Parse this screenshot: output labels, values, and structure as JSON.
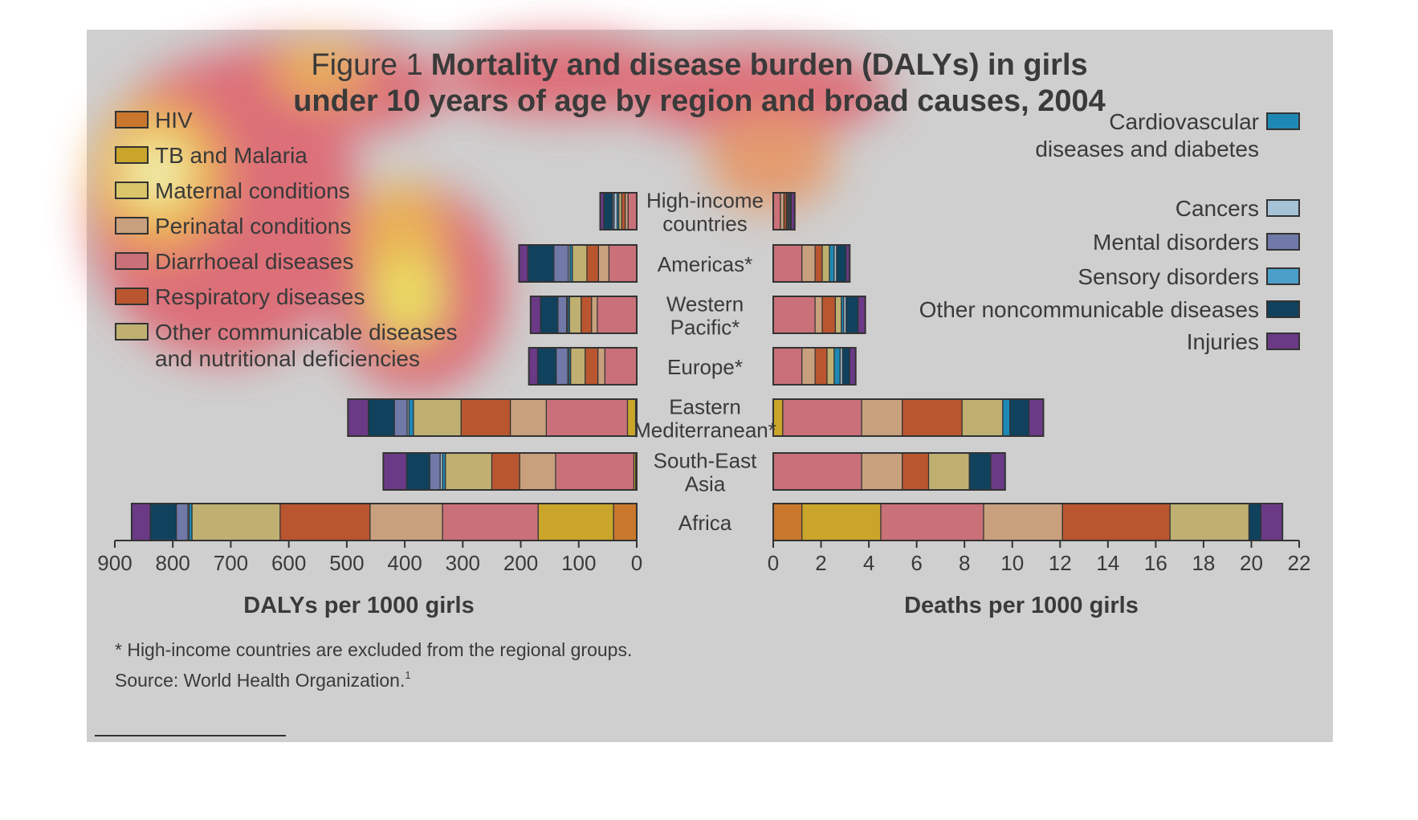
{
  "figure": {
    "title_prefix": "Figure 1",
    "title_line1": "Mortality and disease burden (DALYs) in girls",
    "title_line2": "under 10 years of age by region and broad causes, 2004",
    "footnote": "* High-income countries are excluded from the regional groups.",
    "source": "Source: World Health Organization.",
    "source_ref": "1"
  },
  "colors": {
    "panel_bg": "#cfcfcf",
    "text": "#3a3a3a",
    "bar_stroke": "#333333"
  },
  "legend_left": [
    {
      "key": "hiv",
      "label": "HIV",
      "color": "#c8772d"
    },
    {
      "key": "tb_malaria",
      "label": "TB and Malaria",
      "color": "#c9a52a"
    },
    {
      "key": "maternal",
      "label": "Maternal conditions",
      "color": "#dac56a"
    },
    {
      "key": "perinatal",
      "label": "Perinatal conditions",
      "color": "#c8a07d"
    },
    {
      "key": "diarrhoeal",
      "label": "Diarrhoeal diseases",
      "color": "#c97078"
    },
    {
      "key": "respiratory",
      "label": "Respiratory diseases",
      "color": "#b95630"
    },
    {
      "key": "other_comm",
      "label": "Other communicable diseases",
      "label2": "and nutritional deficiencies",
      "color": "#bfb072"
    }
  ],
  "legend_right": [
    {
      "key": "cardio",
      "label": "Cardiovascular",
      "label2": "diseases and diabetes",
      "color": "#1e88b4"
    },
    {
      "key": "cancers",
      "label": "Cancers",
      "color": "#a6c2d6"
    },
    {
      "key": "mental",
      "label": "Mental disorders",
      "color": "#7079a8"
    },
    {
      "key": "sensory",
      "label": "Sensory disorders",
      "color": "#4b9fc8"
    },
    {
      "key": "other_ncd",
      "label": "Other noncommunicable diseases",
      "color": "#10425e"
    },
    {
      "key": "injuries",
      "label": "Injuries",
      "color": "#6a3a86"
    }
  ],
  "chart_data": [
    {
      "type": "bar",
      "orientation": "horizontal",
      "stacked": true,
      "xlabel": "DALYs per 1000 girls",
      "xlim": [
        0,
        900
      ],
      "xticks": [
        900,
        800,
        700,
        600,
        500,
        400,
        300,
        200,
        100,
        0
      ],
      "direction": "right-to-left",
      "categories": [
        "High-income countries",
        "Americas*",
        "Western Pacific*",
        "Europe*",
        "Eastern Mediterranean*",
        "South-East Asia",
        "Africa"
      ],
      "series": [
        {
          "key": "hiv",
          "values": [
            0,
            0,
            0,
            0,
            2,
            2,
            40
          ]
        },
        {
          "key": "tb_malaria",
          "values": [
            0,
            0,
            0,
            0,
            14,
            3,
            130
          ]
        },
        {
          "key": "diarrhoeal",
          "values": [
            15,
            48,
            68,
            55,
            140,
            135,
            165
          ]
        },
        {
          "key": "perinatal",
          "values": [
            5,
            18,
            10,
            12,
            62,
            62,
            125
          ]
        },
        {
          "key": "respiratory",
          "values": [
            6,
            20,
            18,
            22,
            85,
            48,
            155
          ]
        },
        {
          "key": "other_comm",
          "values": [
            5,
            25,
            20,
            25,
            82,
            80,
            152
          ]
        },
        {
          "key": "cardio",
          "values": [
            3,
            4,
            3,
            3,
            8,
            5,
            5
          ]
        },
        {
          "key": "cancers",
          "values": [
            5,
            3,
            2,
            2,
            3,
            4,
            2
          ]
        },
        {
          "key": "mental",
          "values": [
            3,
            25,
            15,
            20,
            22,
            18,
            20
          ]
        },
        {
          "key": "other_ncd",
          "values": [
            15,
            45,
            30,
            32,
            45,
            40,
            45
          ]
        },
        {
          "key": "injuries",
          "values": [
            6,
            15,
            17,
            15,
            35,
            40,
            32
          ]
        }
      ]
    },
    {
      "type": "bar",
      "orientation": "horizontal",
      "stacked": true,
      "xlabel": "Deaths per 1000 girls",
      "xlim": [
        0,
        22
      ],
      "xticks": [
        0,
        2,
        4,
        6,
        8,
        10,
        12,
        14,
        16,
        18,
        20,
        22
      ],
      "direction": "left-to-right",
      "categories": [
        "High-income countries",
        "Americas*",
        "Western Pacific*",
        "Europe*",
        "Eastern Mediterranean*",
        "South-East Asia",
        "Africa"
      ],
      "series": [
        {
          "key": "hiv",
          "values": [
            0,
            0,
            0,
            0,
            0,
            0,
            1.2
          ]
        },
        {
          "key": "tb_malaria",
          "values": [
            0,
            0,
            0,
            0,
            0.4,
            0,
            3.3
          ]
        },
        {
          "key": "diarrhoeal",
          "values": [
            0.3,
            1.2,
            1.75,
            1.2,
            3.3,
            3.7,
            4.3
          ]
        },
        {
          "key": "perinatal",
          "values": [
            0.15,
            0.55,
            0.3,
            0.55,
            1.7,
            1.7,
            3.3
          ]
        },
        {
          "key": "respiratory",
          "values": [
            0.1,
            0.3,
            0.55,
            0.5,
            2.5,
            1.1,
            4.5
          ]
        },
        {
          "key": "other_comm",
          "values": [
            0.05,
            0.3,
            0.25,
            0.3,
            1.7,
            1.7,
            3.3
          ]
        },
        {
          "key": "cardio",
          "values": [
            0.05,
            0.2,
            0.1,
            0.25,
            0.3,
            0,
            0
          ]
        },
        {
          "key": "cancers",
          "values": [
            0.05,
            0.1,
            0.1,
            0.1,
            0,
            0,
            0
          ]
        },
        {
          "key": "other_ncd",
          "values": [
            0.05,
            0.4,
            0.5,
            0.3,
            0.8,
            0.9,
            0.5
          ]
        },
        {
          "key": "injuries",
          "values": [
            0.15,
            0.15,
            0.3,
            0.25,
            0.6,
            0.6,
            0.9
          ]
        }
      ]
    }
  ],
  "axis_center_labels": [
    [
      "High-income",
      "countries"
    ],
    [
      "Americas*"
    ],
    [
      "Western",
      "Pacific*"
    ],
    [
      "Europe*"
    ],
    [
      "Eastern",
      "Mediterranean*"
    ],
    [
      "South-East",
      "Asia"
    ],
    [
      "Africa"
    ]
  ]
}
